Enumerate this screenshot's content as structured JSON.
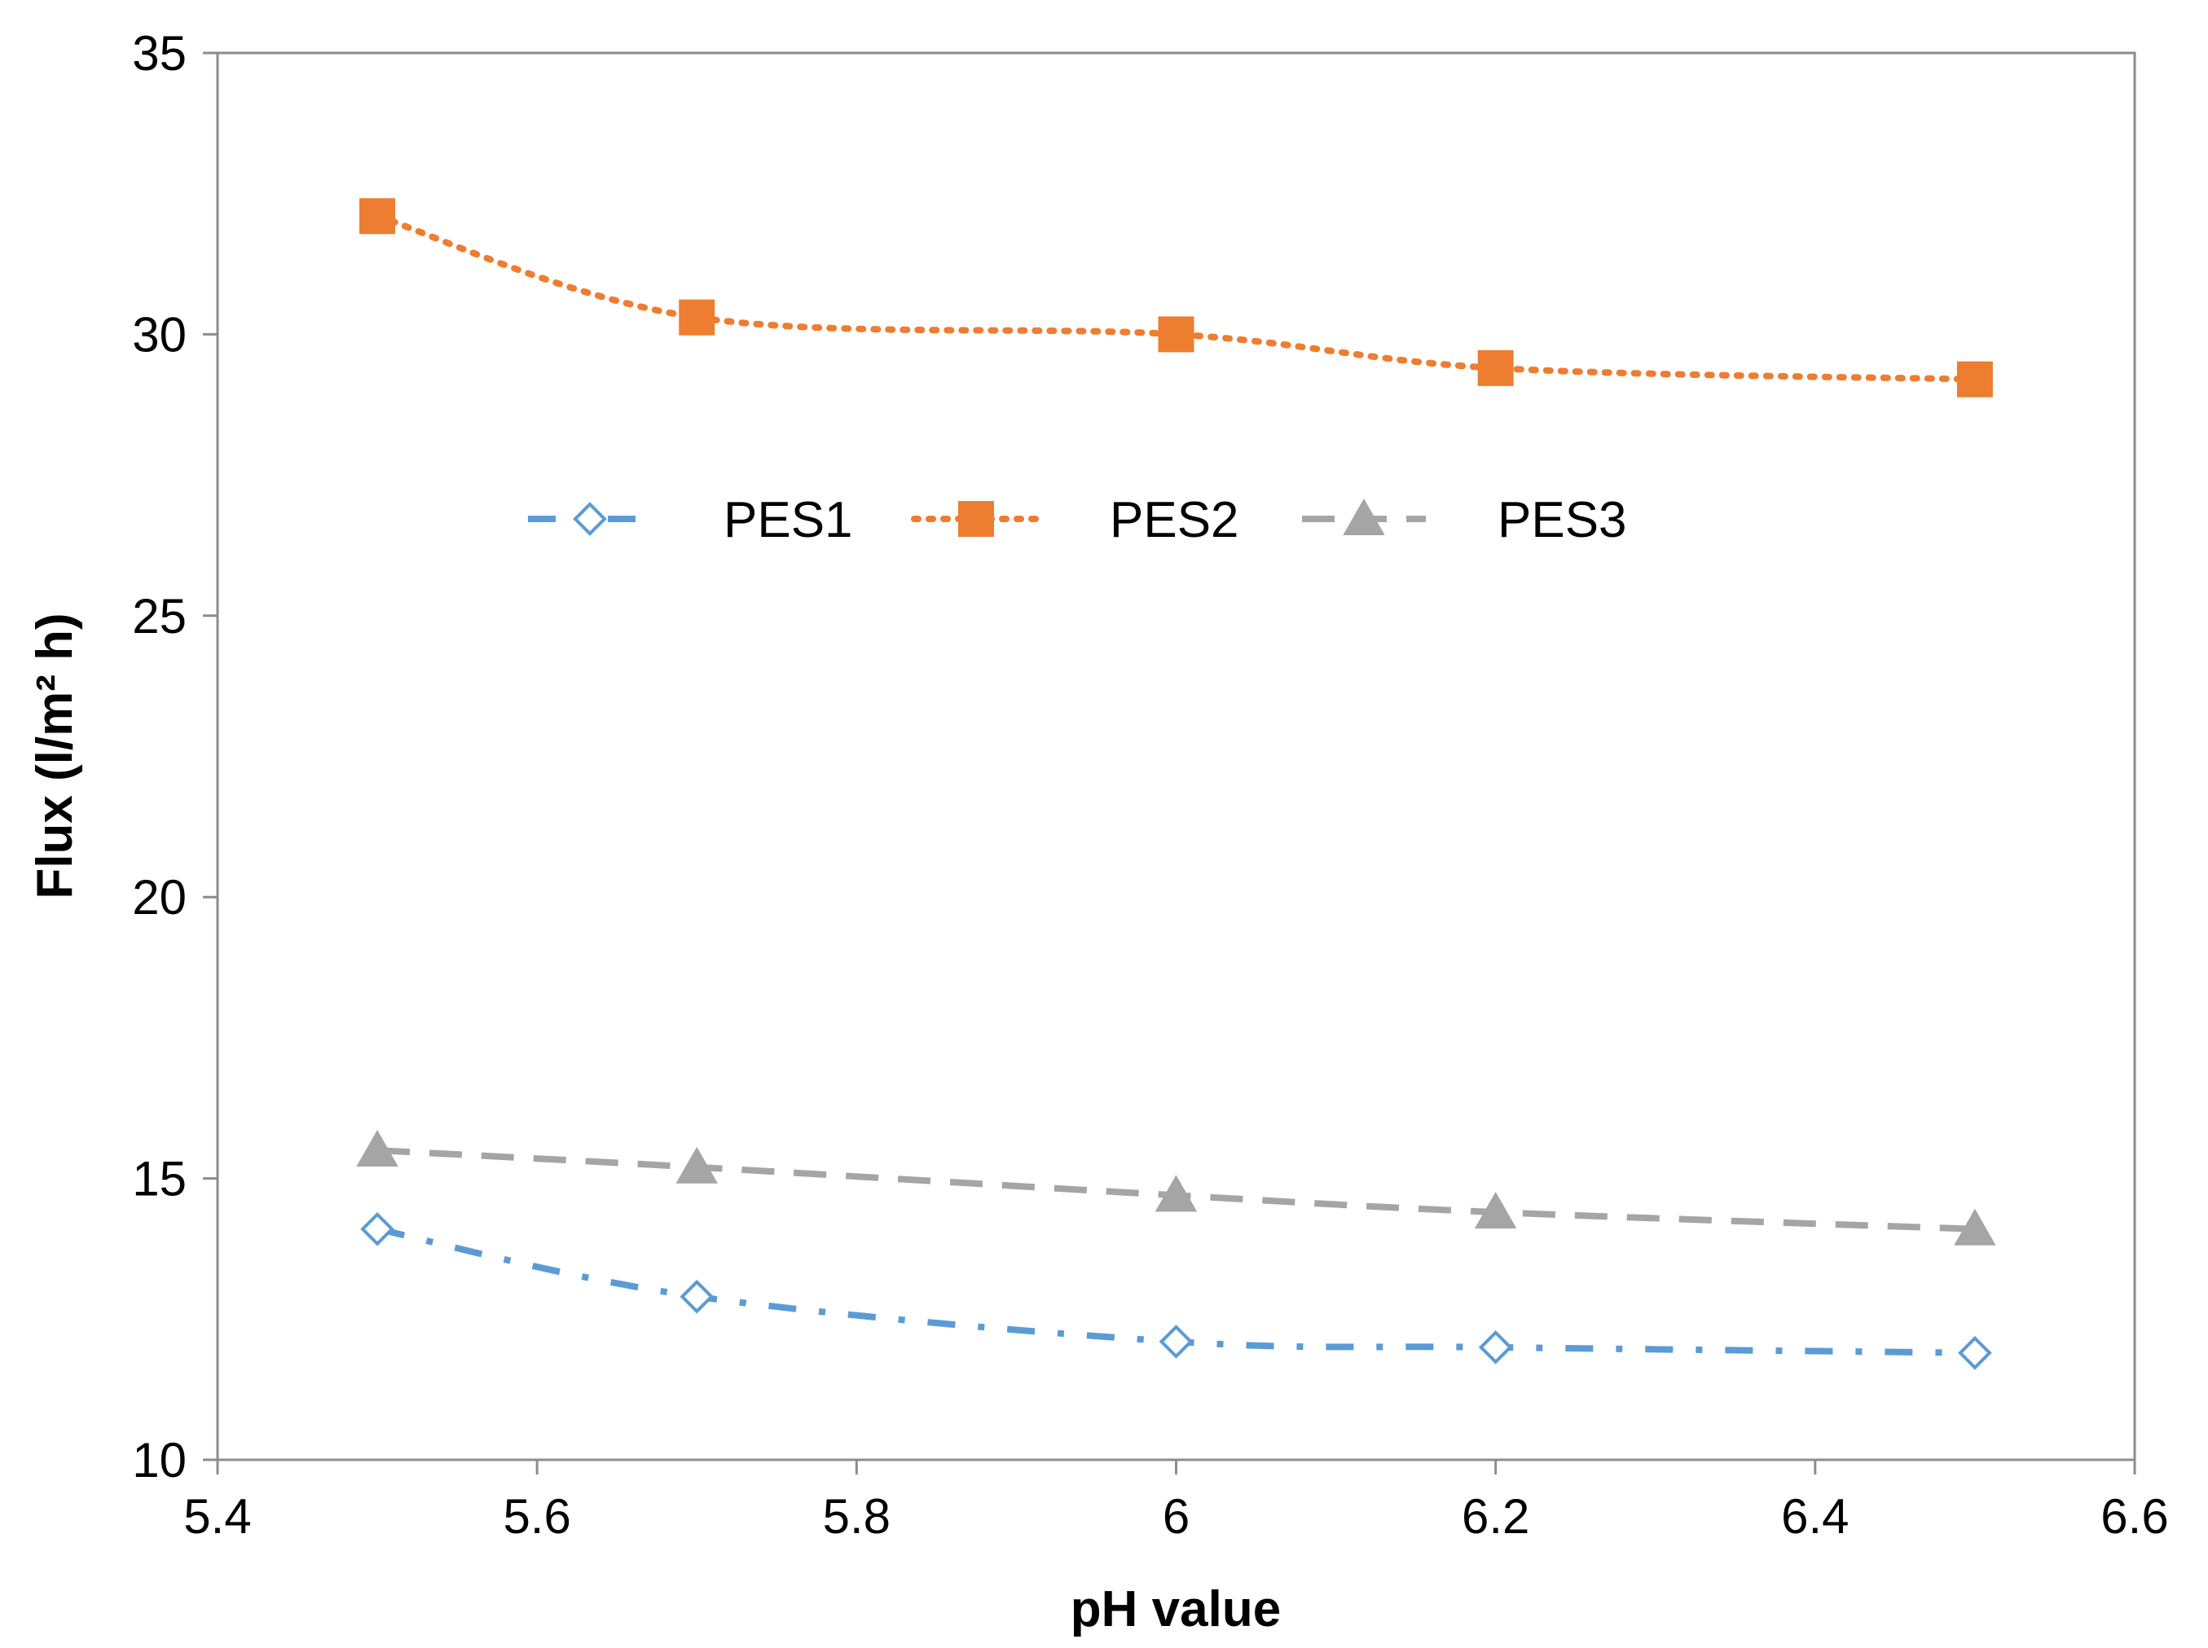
{
  "chart_data": {
    "type": "line",
    "title": "",
    "xlabel": "pH value",
    "ylabel": "Flux (l/m² h)",
    "xlim": [
      5.4,
      6.6
    ],
    "ylim": [
      10,
      35
    ],
    "x_ticks": [
      "5.4",
      "5.6",
      "5.8",
      "6",
      "6.2",
      "6.4",
      "6.6"
    ],
    "y_ticks": [
      "10",
      "15",
      "20",
      "25",
      "30",
      "35"
    ],
    "grid": false,
    "legend_position": "top-center",
    "x": [
      5.5,
      5.7,
      6.0,
      6.2,
      6.5
    ],
    "series": [
      {
        "name": "PES1",
        "values": [
          14.1,
          12.9,
          12.1,
          12.0,
          11.9
        ],
        "color": "#5B9BD5",
        "marker": "open-diamond",
        "line_style": "dash-dot"
      },
      {
        "name": "PES2",
        "values": [
          32.1,
          30.3,
          30.0,
          29.4,
          29.2
        ],
        "color": "#ED7D31",
        "marker": "square",
        "line_style": "dotted"
      },
      {
        "name": "PES3",
        "values": [
          15.5,
          15.2,
          14.7,
          14.4,
          14.1
        ],
        "color": "#A5A5A5",
        "marker": "triangle",
        "line_style": "dashed"
      }
    ]
  }
}
